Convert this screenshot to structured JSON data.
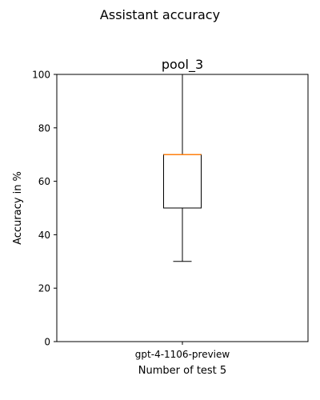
{
  "figure": {
    "suptitle": "Assistant accuracy"
  },
  "chart_data": {
    "type": "box",
    "title": "pool_3",
    "xlabel": "Number of test 5",
    "ylabel": "Accuracy in %",
    "ylim": [
      0,
      100
    ],
    "yticks": [
      0,
      20,
      40,
      60,
      80,
      100
    ],
    "grid": false,
    "categories": [
      "gpt-4-1106-preview"
    ],
    "boxes": [
      {
        "category": "gpt-4-1106-preview",
        "whisker_low": 30,
        "q1": 50,
        "median": 70,
        "q3": 70,
        "whisker_high": 100
      }
    ],
    "colors": {
      "median": "#ff7f0e",
      "box": "#000000",
      "axes": "#000000"
    }
  }
}
